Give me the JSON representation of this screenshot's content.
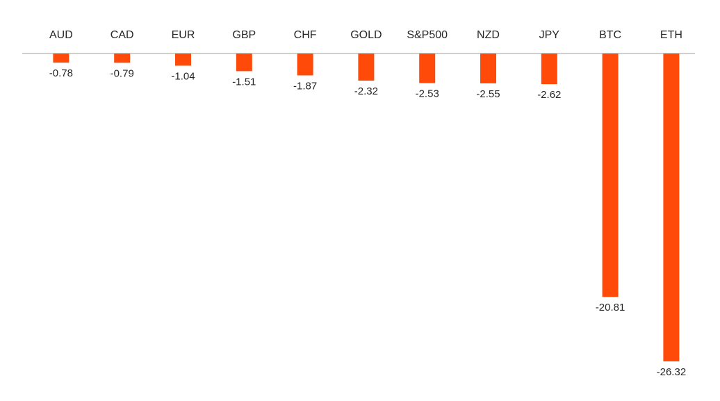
{
  "chart_data": {
    "type": "bar",
    "categories": [
      "AUD",
      "CAD",
      "EUR",
      "GBP",
      "CHF",
      "GOLD",
      "S&P500",
      "NZD",
      "JPY",
      "BTC",
      "ETH"
    ],
    "values": [
      -0.78,
      -0.79,
      -1.04,
      -1.51,
      -1.87,
      -2.32,
      -2.53,
      -2.55,
      -2.62,
      -20.81,
      -26.32
    ],
    "color": "#ff4a0a"
  }
}
